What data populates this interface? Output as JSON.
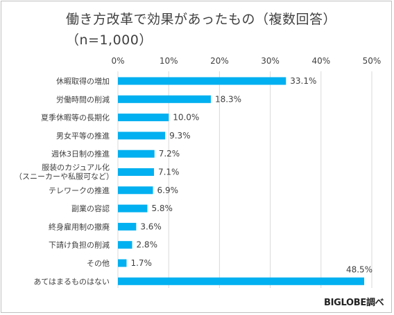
{
  "title": "働き方改革で効果があったもの（複数回答）",
  "subtitle": "（n=1,000）",
  "source": "BIGLOBE調べ",
  "colors": {
    "bar": "#00b0f0",
    "grid": "#d9d9d9",
    "text": "#404040"
  },
  "chart_data": {
    "type": "bar",
    "orientation": "horizontal",
    "title": "働き方改革で効果があったもの（複数回答）",
    "subtitle": "（n=1,000）",
    "categories": [
      [
        "休暇取得の増加"
      ],
      [
        "労働時間の削減"
      ],
      [
        "夏季休暇等の長期化"
      ],
      [
        "男女平等の推進"
      ],
      [
        "週休3日制の推進"
      ],
      [
        "服装のカジュアル化",
        "（スニーカーや私服可など）"
      ],
      [
        "テレワークの推進"
      ],
      [
        "副業の容認"
      ],
      [
        "終身雇用制の撤廃"
      ],
      [
        "下請け負担の削減"
      ],
      [
        "その他"
      ],
      [
        "あてはまるものはない"
      ]
    ],
    "values": [
      33.1,
      18.3,
      10.0,
      9.3,
      7.2,
      7.1,
      6.9,
      5.8,
      3.6,
      2.8,
      1.7,
      48.5
    ],
    "value_labels": [
      "33.1%",
      "18.3%",
      "10.0%",
      "9.3%",
      "7.2%",
      "7.1%",
      "6.9%",
      "5.8%",
      "3.6%",
      "2.8%",
      "1.7%",
      "48.5%"
    ],
    "xlim": [
      0,
      50
    ],
    "xticks": [
      0,
      10,
      20,
      30,
      40,
      50
    ],
    "xtick_labels": [
      "0%",
      "10%",
      "20%",
      "30%",
      "40%",
      "50%"
    ],
    "grid": true,
    "legend": "none"
  }
}
